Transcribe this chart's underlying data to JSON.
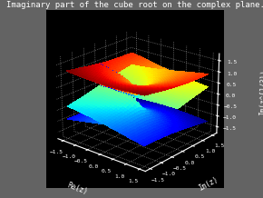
{
  "title": "Imaginary part of the cube root on the complex plane.",
  "xlabel": "Re(z)",
  "ylabel": "Im(z)",
  "zlabel": "Im(z^{1/3})",
  "background_color": "#636363",
  "title_fontsize": 6.5,
  "axis_label_fontsize": 5.5,
  "tick_fontsize": 4.5,
  "re_range": [
    -1.5,
    1.5
  ],
  "im_range": [
    -1.5,
    1.5
  ],
  "n_points": 60,
  "elev": 22,
  "azim": -50,
  "zlim": [
    -1.8,
    1.8
  ],
  "zticks": [
    -1.5,
    -1.0,
    -0.5,
    0.0,
    0.5,
    1.0,
    1.5
  ]
}
